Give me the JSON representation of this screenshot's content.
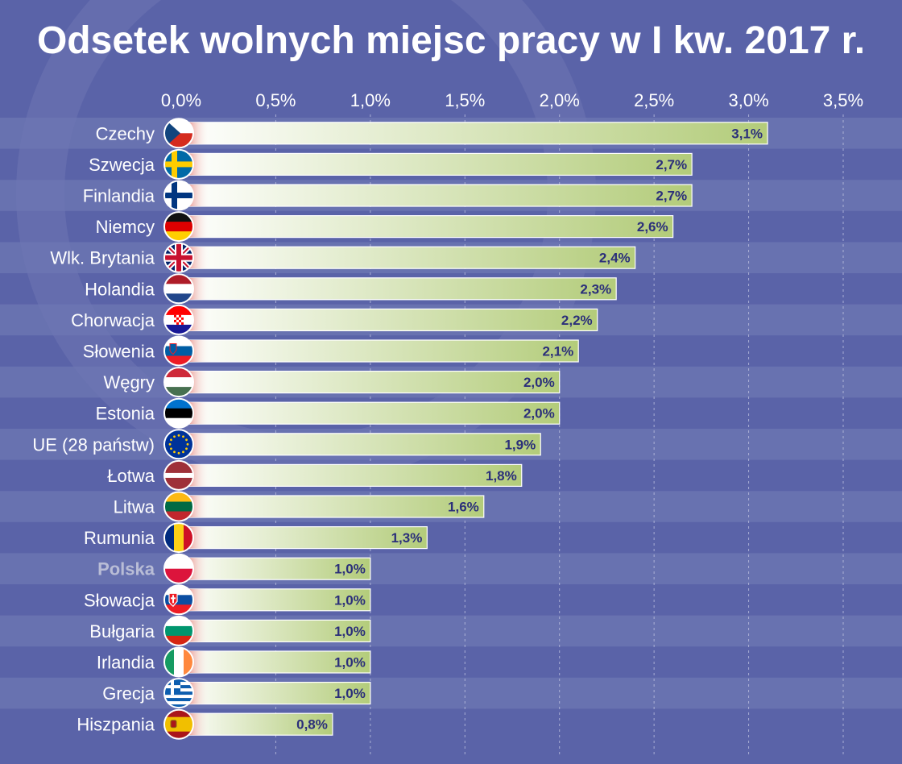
{
  "chart_data": {
    "type": "bar",
    "orientation": "horizontal",
    "title": "Odsetek wolnych miejsc pracy w I kw. 2017 r.",
    "xlabel": "",
    "ylabel": "",
    "xlim": [
      0,
      3.5
    ],
    "ticks": [
      0,
      0.5,
      1.0,
      1.5,
      2.0,
      2.5,
      3.0,
      3.5
    ],
    "tick_labels": [
      "0,0%",
      "0,5%",
      "1,0%",
      "1,5%",
      "2,0%",
      "2,5%",
      "3,0%",
      "3,5%"
    ],
    "grid": true,
    "categories": [
      "Czechy",
      "Szwecja",
      "Finlandia",
      "Niemcy",
      "Wlk. Brytania",
      "Holandia",
      "Chorwacja",
      "Słowenia",
      "Węgry",
      "Estonia",
      "UE (28 państw)",
      "Łotwa",
      "Litwa",
      "Rumunia",
      "Polska",
      "Słowacja",
      "Bułgaria",
      "Irlandia",
      "Grecja",
      "Hiszpania"
    ],
    "values": [
      3.1,
      2.7,
      2.7,
      2.6,
      2.4,
      2.3,
      2.2,
      2.1,
      2.0,
      2.0,
      1.9,
      1.8,
      1.6,
      1.3,
      1.0,
      1.0,
      1.0,
      1.0,
      1.0,
      0.8
    ],
    "value_labels": [
      "3,1%",
      "2,7%",
      "2,7%",
      "2,6%",
      "2,4%",
      "2,3%",
      "2,2%",
      "2,1%",
      "2,0%",
      "2,0%",
      "1,9%",
      "1,8%",
      "1,6%",
      "1,3%",
      "1,0%",
      "1,0%",
      "1,0%",
      "1,0%",
      "1,0%",
      "0,8%"
    ],
    "highlighted_category": "Polska",
    "flag_icons": [
      "czech-flag",
      "sweden-flag",
      "finland-flag",
      "germany-flag",
      "uk-flag",
      "netherlands-flag",
      "croatia-flag",
      "slovenia-flag",
      "hungary-flag",
      "estonia-flag",
      "eu-flag",
      "latvia-flag",
      "lithuania-flag",
      "romania-flag",
      "poland-flag",
      "slovakia-flag",
      "bulgaria-flag",
      "ireland-flag",
      "greece-flag",
      "spain-flag"
    ],
    "colors": {
      "background": "#5a63a8",
      "stripe": "#6e77b3",
      "bar_start": "#ffffff",
      "bar_end": "#b3cc7a",
      "value_text": "#2b2f7a",
      "highlight_label": "#b9bdd6"
    }
  }
}
